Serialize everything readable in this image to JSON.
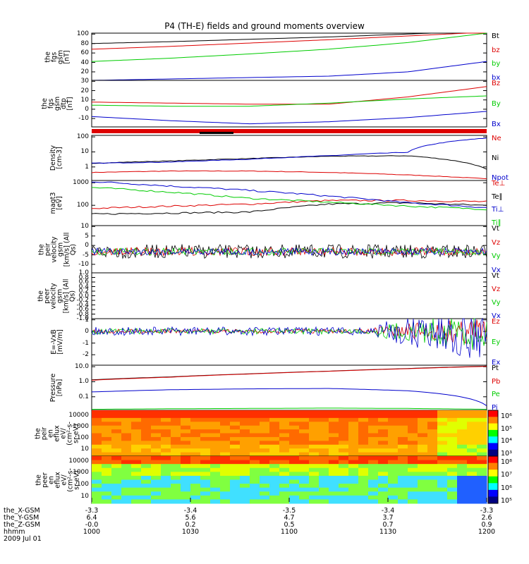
{
  "title": "P4 (TH-E) fields and ground moments overview",
  "colors": {
    "black": "#000000",
    "red": "#dd0000",
    "green": "#00cc00",
    "blue": "#0000cc"
  },
  "chart_data": {
    "type": "line",
    "title": "P4 (TH-E) fields and ground moments overview",
    "panels": [
      {
        "id": "fgs-gsm",
        "ylabel": [
          "the",
          "fgs",
          "gsm",
          "[nT]"
        ],
        "ylim": [
          0,
          100
        ],
        "ticks": [
          "100",
          "80",
          "60",
          "40",
          "20"
        ],
        "legend": [
          "Bt",
          "bz",
          "by",
          "bx"
        ],
        "series": [
          {
            "name": "Bt",
            "values": [
              78,
              82,
              87,
              92,
              98,
              105
            ]
          },
          {
            "name": "bz",
            "values": [
              66,
              72,
              79,
              86,
              94,
              102
            ]
          },
          {
            "name": "by",
            "values": [
              40,
              47,
              56,
              66,
              80,
              100
            ]
          },
          {
            "name": "bx",
            "values": [
              0,
              3,
              6,
              9,
              18,
              40
            ]
          }
        ]
      },
      {
        "id": "fgs-gse",
        "ylabel": [
          "the",
          "fgs",
          "gsm",
          "dtp",
          "[nT]"
        ],
        "ylim": [
          -15,
          30
        ],
        "ticks": [
          "30",
          "20",
          "10",
          "0",
          "-10"
        ],
        "legend": [
          "Bz",
          "By",
          "Bx"
        ],
        "series": [
          {
            "name": "Bz",
            "values": [
              9,
              8,
              7,
              7,
              14,
              24
            ]
          },
          {
            "name": "By",
            "values": [
              6,
              5,
              5,
              8,
              12,
              15
            ]
          },
          {
            "name": "Bx",
            "values": [
              -5,
              -9,
              -12,
              -10,
              -6,
              0
            ]
          }
        ]
      },
      {
        "id": "density",
        "ylabel": [
          "Density",
          "[cm-3]"
        ],
        "scale": "log",
        "ylim": [
          0.4,
          300
        ],
        "ticks": [
          "100",
          "10",
          "1"
        ],
        "legend": [
          "Ne",
          "Ni",
          "Npot"
        ],
        "series": [
          {
            "name": "Ne",
            "values": [
              1.3,
              1.6,
              1.6,
              1.3,
              0.9,
              0.5
            ]
          },
          {
            "name": "Ni",
            "values": [
              5,
              7,
              10,
              14,
              15,
              2
            ]
          },
          {
            "name": "Npot",
            "values": [
              5,
              6,
              9,
              15,
              25,
              200
            ]
          }
        ]
      },
      {
        "id": "temp",
        "ylabel": [
          "magt3",
          "[eV]"
        ],
        "scale": "log",
        "ylim": [
          100,
          1000
        ],
        "ticks": [
          "1000",
          "100"
        ],
        "legend": [
          "Te⊥",
          "Te∥",
          "Ti⊥",
          "Ti∥"
        ],
        "series": [
          {
            "name": "Te⊥",
            "values": [
              240,
              270,
              300,
              360,
              360,
              340
            ]
          },
          {
            "name": "Te∥",
            "values": [
              180,
              190,
              200,
              300,
              320,
              280
            ]
          },
          {
            "name": "Ti⊥",
            "values": [
              950,
              750,
              600,
              450,
              320,
              250
            ]
          },
          {
            "name": "Ti∥",
            "values": [
              700,
              550,
              400,
              330,
              270,
              230
            ]
          }
        ]
      },
      {
        "id": "peir-velocity",
        "ylabel": [
          "the",
          "peir",
          "velocity",
          "gsm",
          "[km/s] (All Qs)"
        ],
        "ylim": [
          -15,
          15
        ],
        "ticks": [
          "10",
          "5",
          "0",
          "-5",
          "-10"
        ],
        "legend": [
          "Vt",
          "Vz",
          "Vy",
          "Vx"
        ]
      },
      {
        "id": "peer-velocity",
        "ylabel": [
          "the",
          "peer",
          "velocity",
          "gsm",
          "[km/s] (All Qs)"
        ],
        "ylim": [
          -1,
          1
        ],
        "ticks": [
          "1.0",
          "0.8",
          "0.6",
          "0.4",
          "0.2",
          "0.0",
          "-0.2",
          "-0.4",
          "-0.6",
          "-0.8",
          "-1.0"
        ],
        "legend": [
          "Vt",
          "Vz",
          "Vy",
          "Vx"
        ]
      },
      {
        "id": "e-field",
        "ylabel": [
          "E=-VxB",
          "[mV/m]"
        ],
        "ylim": [
          -3,
          1.5
        ],
        "ticks": [
          "1",
          "0",
          "-1",
          "-2"
        ],
        "legend": [
          "Ez",
          "Ey",
          "Ex"
        ]
      },
      {
        "id": "pressure",
        "ylabel": [
          "Pressure",
          "[nPa]"
        ],
        "scale": "log",
        "ylim": [
          0.03,
          30
        ],
        "ticks": [
          "10.0",
          "1.0",
          "0.1"
        ],
        "legend": [
          "Pt",
          "Pb",
          "Pe",
          "Pi"
        ],
        "series": [
          {
            "name": "Pt",
            "values": [
              3.2,
              5,
              8,
              12,
              18,
              26
            ]
          },
          {
            "name": "Pb",
            "values": [
              3,
              4.8,
              7.8,
              11.8,
              17.5,
              25
            ]
          },
          {
            "name": "Pe",
            "values": [
              0.035,
              0.038,
              0.04,
              0.042,
              0.04,
              0.035
            ]
          },
          {
            "name": "Pi",
            "values": [
              0.5,
              0.7,
              0.8,
              0.85,
              0.6,
              0.06
            ]
          }
        ]
      },
      {
        "id": "peir-eflux",
        "ylabel": [
          "the",
          "peir",
          "en",
          "eflux",
          "eV/",
          "(cm²-s-",
          "sr-eV)"
        ],
        "type": "heatmap",
        "ticks": [
          "10000",
          "1000",
          "100",
          "10"
        ],
        "colorbar": [
          "10⁶",
          "10⁵",
          "10⁴",
          "10³"
        ]
      },
      {
        "id": "peer-eflux",
        "ylabel": [
          "the",
          "peer",
          "en",
          "eflux",
          "eV/",
          "(cm²-s-",
          "sr-eV)"
        ],
        "type": "heatmap",
        "ticks": [
          "10000",
          "1000",
          "100",
          "10"
        ],
        "colorbar": [
          "10⁸",
          "10⁷",
          "10⁶",
          "10⁵"
        ]
      }
    ],
    "x_axis": {
      "rows": [
        {
          "label": "the_X-GSM",
          "values": [
            "-3.3",
            "-3.4",
            "-3.5",
            "-3.4",
            "-3.3"
          ]
        },
        {
          "label": "the_Y-GSM",
          "values": [
            "6.4",
            "5.6",
            "4.7",
            "3.7",
            "2.6"
          ]
        },
        {
          "label": "the_Z-GSM",
          "values": [
            "-0.0",
            "0.2",
            "0.5",
            "0.7",
            "0.9"
          ]
        },
        {
          "label": "hhmm",
          "values": [
            "1000",
            "1030",
            "1100",
            "1130",
            "1200"
          ]
        }
      ],
      "date": "2009 Jul 01"
    }
  }
}
